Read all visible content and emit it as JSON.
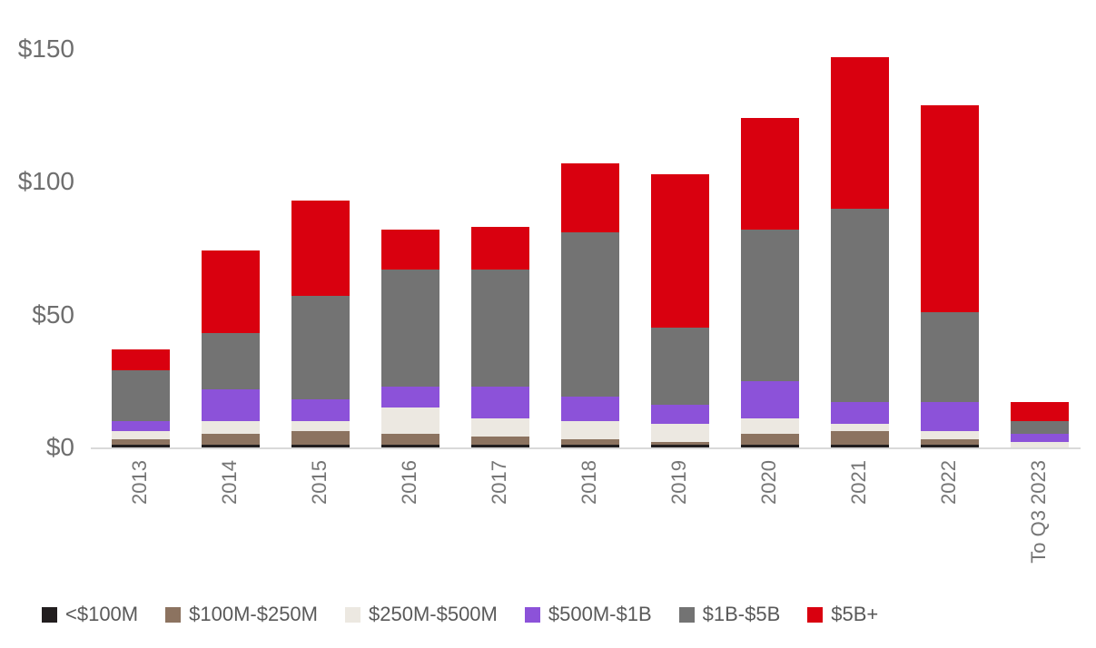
{
  "chart_data": {
    "type": "bar",
    "stacked": true,
    "title": "",
    "xlabel": "",
    "ylabel": "",
    "units": "$ billions (implied by axis)",
    "categories": [
      "2013",
      "2014",
      "2015",
      "2016",
      "2017",
      "2018",
      "2019",
      "2020",
      "2021",
      "2022",
      "To Q3 2023"
    ],
    "series": [
      {
        "name": "<$100M",
        "color": "#221e1f",
        "values": [
          1,
          1,
          1,
          1,
          1,
          1,
          1,
          1,
          1,
          1,
          0
        ]
      },
      {
        "name": "$100M-$250M",
        "color": "#8c7360",
        "values": [
          2,
          4,
          5,
          4,
          3,
          2,
          1,
          4,
          5,
          2,
          0
        ]
      },
      {
        "name": "$250M-$500M",
        "color": "#ece8e1",
        "values": [
          3,
          5,
          4,
          10,
          7,
          7,
          7,
          6,
          3,
          3,
          2
        ]
      },
      {
        "name": "$500M-$1B",
        "color": "#8c52d9",
        "values": [
          4,
          12,
          8,
          8,
          12,
          9,
          7,
          14,
          8,
          11,
          3
        ]
      },
      {
        "name": "$1B-$5B",
        "color": "#737373",
        "values": [
          19,
          21,
          39,
          44,
          44,
          62,
          29,
          57,
          73,
          34,
          5
        ]
      },
      {
        "name": "$5B+",
        "color": "#d9000f",
        "values": [
          8,
          31,
          36,
          15,
          16,
          26,
          58,
          42,
          57,
          78,
          7
        ]
      }
    ],
    "totals": [
      37,
      74,
      93,
      82,
      83,
      107,
      103,
      124,
      147,
      129,
      17
    ],
    "y_ticks": [
      {
        "label": "$0",
        "value": 0
      },
      {
        "label": "$50",
        "value": 50
      },
      {
        "label": "$100",
        "value": 100
      },
      {
        "label": "$150",
        "value": 150
      }
    ],
    "ylim": [
      0,
      150
    ],
    "grid": false,
    "legend_position": "bottom",
    "x_label_rotation": 90
  },
  "colors": {
    "axis_line": "#d9d9d9",
    "y_tick_text": "#6e6e6e",
    "x_tick_text": "#757575",
    "legend_text": "#595959",
    "background": "#ffffff"
  }
}
